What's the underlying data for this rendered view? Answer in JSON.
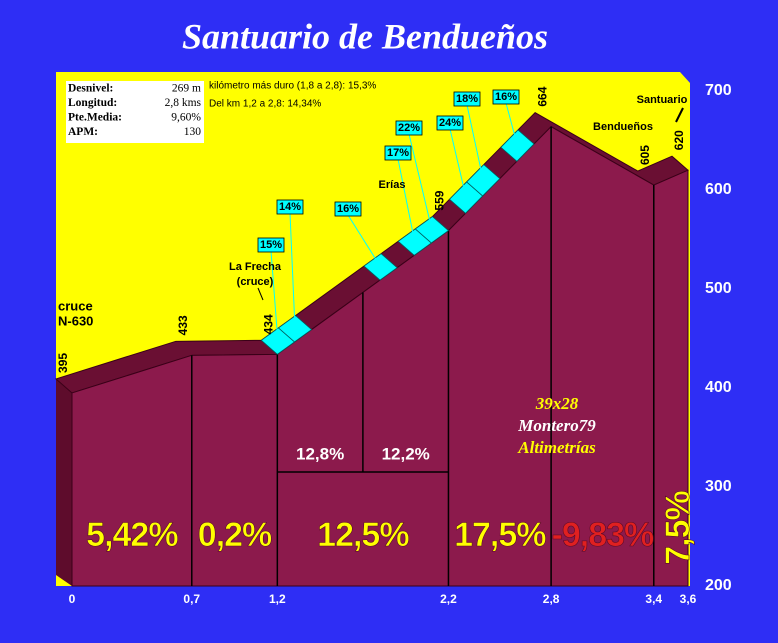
{
  "chart_data": {
    "type": "profile",
    "title": "Santuario de Bendueños",
    "x": [
      0,
      0.7,
      1.2,
      2.2,
      2.8,
      3.4,
      3.6
    ],
    "values": [
      395,
      433,
      434,
      559,
      664,
      605,
      620
    ],
    "color": "#8c1a4c",
    "xlim": [
      0,
      3.6
    ],
    "xticks": [
      0,
      {
        "value": 0.7,
        "label": "0,7"
      },
      {
        "value": 1.2,
        "label": "1,2"
      },
      {
        "value": 2.2,
        "label": "2,2"
      },
      {
        "value": 2.8,
        "label": "2,8"
      },
      {
        "value": 3.4,
        "label": "3,4"
      },
      {
        "value": 3.6,
        "label": "3,6"
      }
    ],
    "ylim": [
      200,
      700
    ],
    "yticks": [
      200,
      300,
      400,
      500,
      600,
      700
    ],
    "grades": {
      "values": [
        5.42,
        0.2,
        12.5,
        17.5,
        -9.83,
        7.5
      ],
      "value_labels": [
        "5,42%",
        "0,2%",
        "12,5%",
        "17,5%",
        "-9,83%",
        "7,5%"
      ],
      "colors": [
        "#ffff00",
        "#ffff00",
        "#ffff00",
        "#ffff00",
        "#e02020",
        "#ffff00"
      ]
    },
    "sub_grades": {
      "split": 1.7,
      "values": [
        12.8,
        12.2
      ],
      "value_labels": [
        "12,8%",
        "12,2%"
      ]
    },
    "steep_grades": {
      "x": [
        1.35,
        1.25,
        1.85,
        2.05,
        2.15,
        2.35,
        2.45,
        2.65
      ],
      "values": [
        14,
        15,
        16,
        17,
        22,
        24,
        18,
        16
      ],
      "value_labels": [
        "14%",
        "15%",
        "16%",
        "17%",
        "22%",
        "24%",
        "18%",
        "16%"
      ]
    },
    "places": [
      [
        "cruce",
        "N-630"
      ],
      [
        "La Frecha",
        "(cruce)"
      ],
      [
        "Erías"
      ],
      [
        "Bendueños"
      ],
      [
        "Santuario"
      ]
    ],
    "info": [
      [
        "Desnivel:",
        "269 m"
      ],
      [
        "Longitud:",
        "2,8 kms"
      ],
      [
        "Pte.Media:",
        "9,60%"
      ],
      [
        "APM:",
        "130"
      ]
    ],
    "notes": [
      "kilómetro más duro (1,8 a 2,8): 15,3%",
      "Del km 1,2 a 2,8:  14,34%"
    ],
    "credits": [
      "39x28",
      "Montero79",
      "Altimetrías"
    ]
  }
}
